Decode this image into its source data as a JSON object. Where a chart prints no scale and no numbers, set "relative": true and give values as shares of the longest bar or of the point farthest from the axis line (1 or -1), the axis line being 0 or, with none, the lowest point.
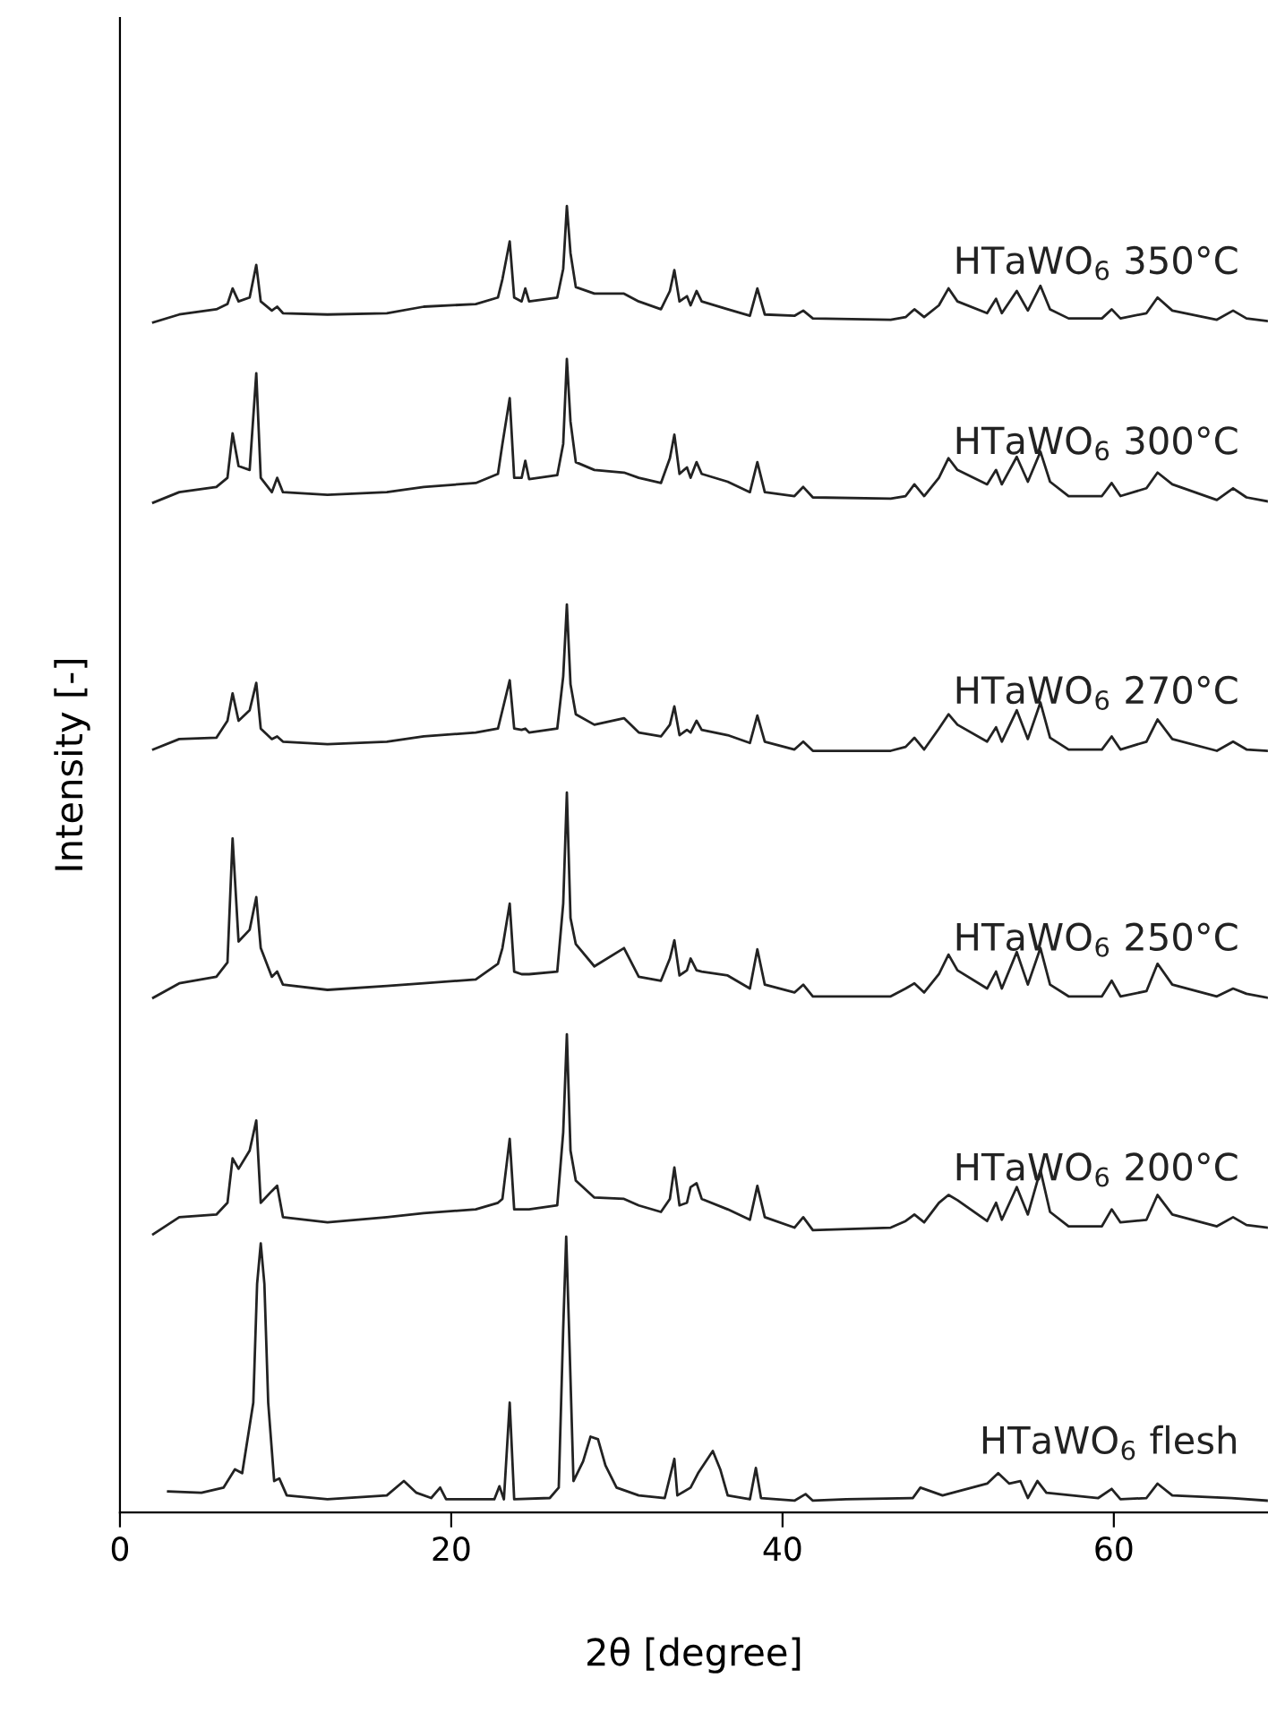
{
  "chart_data": {
    "type": "line",
    "relative": true,
    "xlabel": "2θ [degree]",
    "ylabel": "Intensity [-]",
    "xlim": [
      0,
      69.3
    ],
    "xticks": [
      0,
      20,
      40,
      60
    ],
    "grid": false,
    "marker": "none",
    "line_style": "solid",
    "x": [
      2.01,
      3.58,
      5.82,
      6.49,
      6.8,
      7.16,
      7.83,
      8.23,
      8.5,
      9.17,
      9.49,
      9.84,
      12.53,
      16.11,
      18.34,
      21.48,
      22.82,
      23.09,
      23.53,
      23.8,
      24.25,
      24.47,
      24.7,
      26.4,
      26.76,
      26.98,
      27.2,
      27.52,
      28.64,
      30.43,
      31.32,
      32.66,
      33.2,
      33.47,
      33.78,
      34.23,
      34.45,
      34.81,
      35.12,
      36.69,
      38.03,
      38.48,
      38.93,
      40.72,
      41.25,
      41.83,
      46.53,
      47.43,
      47.96,
      48.55,
      49.44,
      50.02,
      50.56,
      52.35,
      52.89,
      53.24,
      54.14,
      54.81,
      55.57,
      56.15,
      57.27,
      59.28,
      59.87,
      60.4,
      61.97,
      62.64,
      63.53,
      66.22,
      67.2,
      68.01,
      69.26
    ],
    "series": [
      {
        "name": "HTaWO$_{6}$ 350°C",
        "color": "#222222",
        "values": [
          0.911,
          0.917,
          0.921,
          0.925,
          0.937,
          0.927,
          0.93,
          0.955,
          0.927,
          0.92,
          0.923,
          0.918,
          0.917,
          0.918,
          0.923,
          0.925,
          0.93,
          0.944,
          0.973,
          0.93,
          0.927,
          0.937,
          0.927,
          0.93,
          0.952,
          1,
          0.964,
          0.938,
          0.933,
          0.933,
          0.927,
          0.921,
          0.935,
          0.951,
          0.927,
          0.931,
          0.924,
          0.935,
          0.927,
          0.921,
          0.916,
          0.937,
          0.917,
          0.916,
          0.92,
          0.914,
          0.913,
          0.915,
          0.921,
          0.915,
          0.924,
          0.937,
          0.927,
          0.918,
          0.929,
          0.918,
          0.935,
          0.92,
          0.939,
          0.921,
          0.914,
          0.914,
          0.921,
          0.914,
          0.918,
          0.93,
          0.92,
          0.913,
          0.92,
          0.914,
          0.912
        ]
      },
      {
        "name": "HTaWO$_{6}$ 300°C",
        "color": "#222222",
        "values": [
          0.773,
          0.781,
          0.785,
          0.792,
          0.826,
          0.801,
          0.798,
          0.872,
          0.792,
          0.781,
          0.792,
          0.781,
          0.779,
          0.781,
          0.785,
          0.788,
          0.795,
          0.818,
          0.853,
          0.792,
          0.792,
          0.805,
          0.791,
          0.794,
          0.818,
          0.883,
          0.835,
          0.804,
          0.798,
          0.796,
          0.792,
          0.788,
          0.807,
          0.825,
          0.795,
          0.8,
          0.792,
          0.804,
          0.795,
          0.789,
          0.781,
          0.804,
          0.781,
          0.778,
          0.785,
          0.777,
          0.776,
          0.778,
          0.787,
          0.778,
          0.792,
          0.807,
          0.798,
          0.787,
          0.798,
          0.787,
          0.808,
          0.789,
          0.812,
          0.789,
          0.778,
          0.778,
          0.788,
          0.778,
          0.784,
          0.796,
          0.787,
          0.775,
          0.784,
          0.777,
          0.774
        ]
      },
      {
        "name": "HTaWO$_{6}$ 270°C",
        "color": "#222222",
        "values": [
          0.584,
          0.592,
          0.593,
          0.606,
          0.627,
          0.606,
          0.614,
          0.635,
          0.6,
          0.592,
          0.594,
          0.59,
          0.588,
          0.59,
          0.594,
          0.597,
          0.6,
          0.614,
          0.637,
          0.6,
          0.599,
          0.6,
          0.597,
          0.6,
          0.64,
          0.695,
          0.634,
          0.611,
          0.603,
          0.608,
          0.597,
          0.594,
          0.603,
          0.617,
          0.595,
          0.599,
          0.597,
          0.606,
          0.599,
          0.595,
          0.589,
          0.61,
          0.59,
          0.584,
          0.59,
          0.583,
          0.583,
          0.586,
          0.593,
          0.584,
          0.6,
          0.611,
          0.603,
          0.59,
          0.601,
          0.59,
          0.614,
          0.592,
          0.62,
          0.593,
          0.584,
          0.584,
          0.594,
          0.584,
          0.59,
          0.607,
          0.592,
          0.583,
          0.59,
          0.584,
          0.583
        ]
      },
      {
        "name": "HTaWO$_{6}$ 250°C",
        "color": "#222222",
        "values": [
          0.394,
          0.405,
          0.41,
          0.421,
          0.516,
          0.437,
          0.446,
          0.471,
          0.432,
          0.41,
          0.414,
          0.404,
          0.4,
          0.403,
          0.405,
          0.408,
          0.42,
          0.432,
          0.466,
          0.414,
          0.412,
          0.412,
          0.412,
          0.414,
          0.466,
          0.551,
          0.455,
          0.435,
          0.418,
          0.432,
          0.41,
          0.407,
          0.424,
          0.438,
          0.411,
          0.415,
          0.424,
          0.415,
          0.414,
          0.411,
          0.401,
          0.431,
          0.404,
          0.398,
          0.404,
          0.395,
          0.395,
          0.401,
          0.405,
          0.398,
          0.412,
          0.427,
          0.415,
          0.401,
          0.414,
          0.401,
          0.429,
          0.404,
          0.432,
          0.404,
          0.395,
          0.395,
          0.407,
          0.395,
          0.399,
          0.42,
          0.404,
          0.395,
          0.401,
          0.397,
          0.394
        ]
      },
      {
        "name": "HTaWO$_{6}$ 200°C",
        "color": "#222222",
        "values": [
          0.213,
          0.226,
          0.228,
          0.237,
          0.271,
          0.263,
          0.277,
          0.3,
          0.237,
          0.246,
          0.25,
          0.226,
          0.222,
          0.226,
          0.229,
          0.232,
          0.237,
          0.24,
          0.286,
          0.232,
          0.232,
          0.232,
          0.232,
          0.235,
          0.291,
          0.366,
          0.277,
          0.254,
          0.241,
          0.24,
          0.235,
          0.23,
          0.24,
          0.264,
          0.235,
          0.237,
          0.249,
          0.252,
          0.24,
          0.232,
          0.224,
          0.25,
          0.226,
          0.218,
          0.226,
          0.216,
          0.218,
          0.223,
          0.228,
          0.222,
          0.237,
          0.243,
          0.239,
          0.223,
          0.237,
          0.224,
          0.249,
          0.228,
          0.262,
          0.23,
          0.219,
          0.219,
          0.232,
          0.222,
          0.224,
          0.243,
          0.228,
          0.219,
          0.226,
          0.22,
          0.218
        ]
      },
      {
        "name": "HTaWO$_{6}$ flesh",
        "color": "#222222",
        "x": [
          2.91,
          4.92,
          6.26,
          6.94,
          7.38,
          8.05,
          8.28,
          8.5,
          8.72,
          8.95,
          9.31,
          9.62,
          10.07,
          12.53,
          16.11,
          17.14,
          17.9,
          18.79,
          19.33,
          19.69,
          22.6,
          22.91,
          23.18,
          23.53,
          23.8,
          25.95,
          26.49,
          26.76,
          26.94,
          27.11,
          27.38,
          27.96,
          28.41,
          28.86,
          29.31,
          29.98,
          31.32,
          32.89,
          33.2,
          33.47,
          33.65,
          34.45,
          34.9,
          35.79,
          36.24,
          36.69,
          38.03,
          38.39,
          38.7,
          40.72,
          41.39,
          41.83,
          43.85,
          47.87,
          48.32,
          49.66,
          52.35,
          53.02,
          53.69,
          54.36,
          54.81,
          55.39,
          55.93,
          59.06,
          59.87,
          60.4,
          61.97,
          62.64,
          63.53,
          67.11,
          69.26
        ],
        "values": [
          0.016,
          0.015,
          0.019,
          0.033,
          0.03,
          0.084,
          0.175,
          0.206,
          0.175,
          0.084,
          0.024,
          0.026,
          0.013,
          0.01,
          0.013,
          0.024,
          0.015,
          0.011,
          0.019,
          0.01,
          0.01,
          0.02,
          0.01,
          0.084,
          0.01,
          0.011,
          0.019,
          0.141,
          0.211,
          0.141,
          0.024,
          0.039,
          0.058,
          0.056,
          0.036,
          0.019,
          0.013,
          0.011,
          0.027,
          0.041,
          0.013,
          0.019,
          0.03,
          0.047,
          0.033,
          0.013,
          0.01,
          0.034,
          0.011,
          0.009,
          0.014,
          0.009,
          0.01,
          0.011,
          0.019,
          0.013,
          0.022,
          0.03,
          0.022,
          0.024,
          0.011,
          0.024,
          0.015,
          0.011,
          0.018,
          0.01,
          0.011,
          0.022,
          0.013,
          0.011,
          0.009
        ]
      }
    ]
  }
}
